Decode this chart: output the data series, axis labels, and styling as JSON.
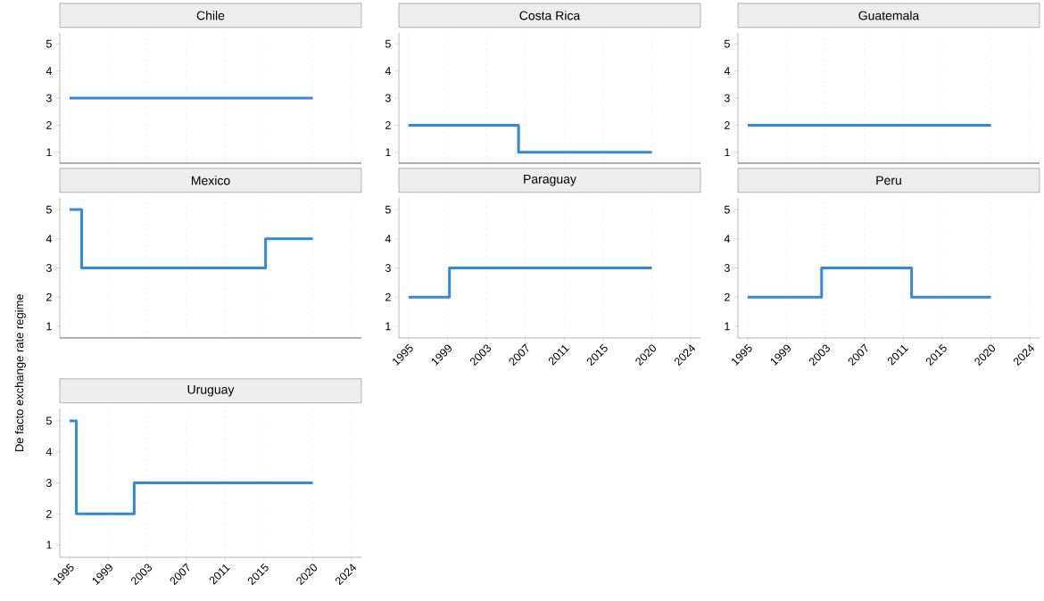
{
  "chart_data": [
    {
      "type": "step",
      "title": "Chile",
      "xlim": [
        1994,
        2025
      ],
      "ylim": [
        0.6,
        5.4
      ],
      "yticks": [
        1,
        2,
        3,
        4,
        5
      ],
      "xticks": [
        1995,
        1999,
        2003,
        2007,
        2011,
        2015,
        2020,
        2024
      ],
      "grid": "x",
      "tick_labels": "y",
      "series": [
        {
          "color": "#3388dd",
          "x": [
            1995,
            2020
          ],
          "values": [
            3,
            3
          ]
        }
      ]
    },
    {
      "type": "step",
      "title": "Costa Rica",
      "xlim": [
        1994,
        2025
      ],
      "ylim": [
        0.6,
        5.4
      ],
      "yticks": [
        1,
        2,
        3,
        4,
        5
      ],
      "xticks": [
        1995,
        1999,
        2003,
        2007,
        2011,
        2015,
        2020,
        2024
      ],
      "grid": "x",
      "tick_labels": "y",
      "series": [
        {
          "color": "#3388dd",
          "x": [
            1995,
            2006.3,
            2020
          ],
          "values": [
            2,
            1,
            1
          ]
        }
      ]
    },
    {
      "type": "step",
      "title": "Guatemala",
      "xlim": [
        1994,
        2025
      ],
      "ylim": [
        0.6,
        5.4
      ],
      "yticks": [
        1,
        2,
        3,
        4,
        5
      ],
      "xticks": [
        1995,
        1999,
        2003,
        2007,
        2011,
        2015,
        2020,
        2024
      ],
      "grid": "x",
      "tick_labels": "y",
      "series": [
        {
          "color": "#3388dd",
          "x": [
            1995,
            2020
          ],
          "values": [
            2,
            2
          ]
        }
      ]
    },
    {
      "type": "step",
      "title": "Mexico",
      "ylabel": "De facto exchange rate regime",
      "xlim": [
        1994,
        2025
      ],
      "ylim": [
        0.6,
        5.4
      ],
      "yticks": [
        1,
        2,
        3,
        4,
        5
      ],
      "xticks": [
        1995,
        1999,
        2003,
        2007,
        2011,
        2015,
        2020,
        2024
      ],
      "grid": "x",
      "tick_labels": "y",
      "series": [
        {
          "color": "#3388dd",
          "x": [
            1995,
            1996.25,
            2015.15,
            2020
          ],
          "values": [
            5,
            3,
            4,
            4
          ]
        }
      ]
    },
    {
      "type": "step",
      "title": "Paraguay",
      "xlim": [
        1994,
        2025
      ],
      "ylim": [
        0.6,
        5.4
      ],
      "yticks": [
        1,
        2,
        3,
        4,
        5
      ],
      "xticks": [
        1995,
        1999,
        2003,
        2007,
        2011,
        2015,
        2020,
        2024
      ],
      "grid": "x",
      "series": [
        {
          "color": "#3388dd",
          "x": [
            1995,
            1999.2,
            2020
          ],
          "values": [
            2,
            3,
            3
          ]
        }
      ]
    },
    {
      "type": "step",
      "title": "Peru",
      "xlim": [
        1994,
        2025
      ],
      "ylim": [
        0.6,
        5.4
      ],
      "yticks": [
        1,
        2,
        3,
        4,
        5
      ],
      "xticks": [
        1995,
        1999,
        2003,
        2007,
        2011,
        2015,
        2020,
        2024
      ],
      "grid": "x",
      "series": [
        {
          "color": "#3388dd",
          "x": [
            1995,
            2002.6,
            2011.85,
            2020
          ],
          "values": [
            2,
            3,
            2,
            2
          ]
        }
      ]
    },
    {
      "type": "step",
      "title": "Uruguay",
      "xlim": [
        1994,
        2025
      ],
      "ylim": [
        0.6,
        5.4
      ],
      "yticks": [
        1,
        2,
        3,
        4,
        5
      ],
      "xticks": [
        1995,
        1999,
        2003,
        2007,
        2011,
        2015,
        2020,
        2024
      ],
      "grid": "x",
      "series": [
        {
          "color": "#3388dd",
          "x": [
            1995,
            1995.7,
            2001.65,
            2020
          ],
          "values": [
            5,
            2,
            3,
            3
          ]
        }
      ]
    }
  ]
}
